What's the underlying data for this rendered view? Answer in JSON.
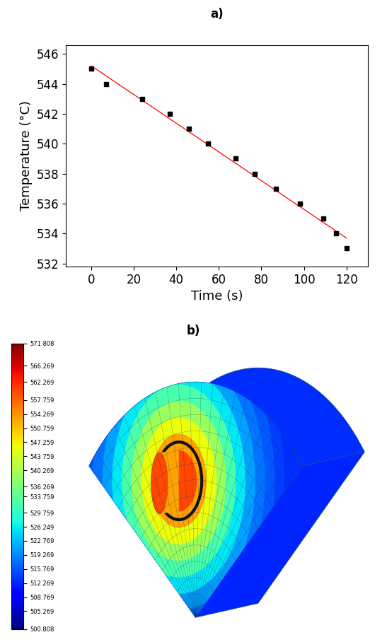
{
  "chart_data": [
    {
      "type": "scatter",
      "title": "a)",
      "x_label": "Time (s)",
      "y_label": "Temperature (°C)",
      "series": [
        {
          "type": "scatter",
          "color": "#000000",
          "marker": "square",
          "x": [
            0,
            7,
            24,
            37,
            46,
            55,
            68,
            77,
            87,
            98,
            109,
            115,
            120
          ],
          "values": [
            545,
            544,
            543,
            542,
            541,
            540,
            539,
            538,
            537,
            536,
            535,
            534,
            533
          ]
        },
        {
          "type": "line",
          "color": "#ff0000",
          "line_style": "solid",
          "x": [
            0,
            120
          ],
          "values": [
            545.2,
            533.7
          ]
        }
      ],
      "xlim": [
        -12,
        130
      ],
      "xticks": [
        0,
        20,
        40,
        60,
        80,
        100,
        120
      ],
      "ylim": [
        531.8,
        546.6
      ],
      "yticks": [
        532,
        534,
        536,
        538,
        540,
        542,
        544,
        546
      ],
      "grid": false
    },
    {
      "type": "heatmap",
      "title": "b)",
      "radial_profile": [
        560,
        553,
        546,
        539,
        532,
        526,
        521,
        518,
        516,
        514,
        513
      ],
      "colorbar_range": [
        500.808,
        571.808
      ],
      "colorbar_ticks": [
        571.808,
        566.269,
        562.269,
        557.759,
        554.269,
        550.759,
        547.259,
        543.759,
        540.269,
        536.269,
        533.759,
        529.759,
        526.249,
        522.769,
        519.269,
        515.769,
        512.269,
        508.769,
        505.269,
        500.808
      ]
    }
  ]
}
